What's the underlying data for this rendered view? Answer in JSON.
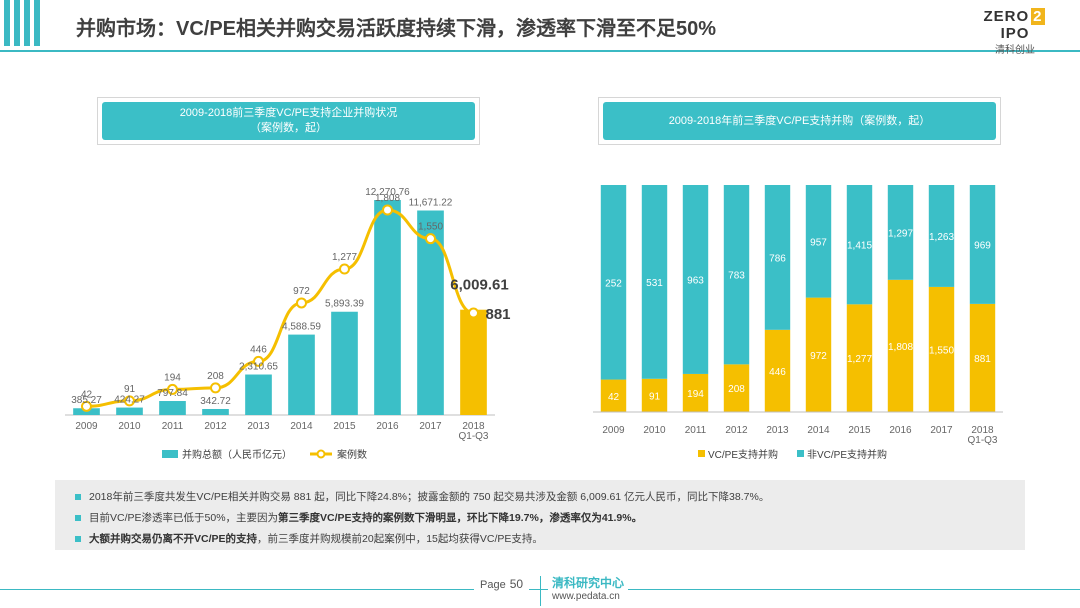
{
  "header": {
    "title": "并购市场：VC/PE相关并购交易活跃度持续下滑，渗透率下滑至不足50%"
  },
  "logo": {
    "name_left": "ZERO",
    "name_mid": "2",
    "name_right": "IPO",
    "sub": "清科创业"
  },
  "left_box": {
    "line1": "2009-2018前三季度VC/PE支持企业并购状况",
    "line2": "（案例数，起）"
  },
  "right_box": {
    "line1": "2009-2018年前三季度VC/PE支持并购（案例数，起）"
  },
  "chart_data": [
    {
      "type": "bar+line",
      "categories": [
        "2009",
        "2010",
        "2011",
        "2012",
        "2013",
        "2014",
        "2015",
        "2016",
        "2017",
        "2018 Q1-Q3"
      ],
      "series": [
        {
          "name": "并购总额（人民币亿元）",
          "type": "bar",
          "values": [
            385.27,
            424.27,
            797.84,
            342.72,
            2310.65,
            4588.59,
            5893.39,
            12270.76,
            11671.22,
            6009.61
          ],
          "labels": [
            "385.27",
            "424.27",
            "797.84",
            "342.72",
            "2,310.65",
            "4,588.59",
            "5,893.39",
            "12,270.76",
            "11,671.22",
            "6,009.61"
          ]
        },
        {
          "name": "案例数",
          "type": "line",
          "values": [
            42,
            91,
            194,
            208,
            446,
            972,
            1277,
            1808,
            1550,
            881
          ],
          "labels": [
            "42",
            "91",
            "194",
            "208",
            "446",
            "972",
            "1,277",
            "1,808",
            "1,550",
            "881"
          ]
        }
      ],
      "bar_color": "#3bbfc7",
      "last_bar_color": "#f5bf00",
      "line_color": "#f5bf00",
      "legend_position": "bottom"
    },
    {
      "type": "stacked-bar-100",
      "categories": [
        "2009",
        "2010",
        "2011",
        "2012",
        "2013",
        "2014",
        "2015",
        "2016",
        "2017",
        "2018 Q1-Q3"
      ],
      "series": [
        {
          "name": "VC/PE支持并购",
          "values": [
            42,
            91,
            194,
            208,
            446,
            972,
            1277,
            1808,
            1550,
            881
          ],
          "labels": [
            "42",
            "91",
            "194",
            "208",
            "446",
            "972",
            "1,277",
            "1,808",
            "1,550",
            "881"
          ],
          "color": "#f5bf00"
        },
        {
          "name": "非VC/PE支持并购",
          "values": [
            252,
            531,
            963,
            783,
            786,
            957,
            1415,
            1297,
            1263,
            969
          ],
          "labels": [
            "252",
            "531",
            "963",
            "783",
            "786",
            "957",
            "1,415",
            "1,297",
            "1,263",
            "969"
          ],
          "color": "#3bbfc7"
        }
      ],
      "legend_position": "bottom"
    }
  ],
  "notes": [
    {
      "pre": "2018年前三季度共发生VC/PE相关并购交易 881 起，同比下降24.8%；披露金额的 750 起交易共涉及金额 6,009.61 亿元人民币，同比下降38.7%。",
      "bold": "",
      "post": ""
    },
    {
      "pre": "目前VC/PE渗透率已低于50%，主要因为",
      "bold": "第三季度VC/PE支持的案例数下滑明显，环比下降19.7%，渗透率仅为41.9%。",
      "post": ""
    },
    {
      "pre": "",
      "bold": "大额并购交易仍离不开VC/PE的支持",
      "post": "，前三季度并购规模前20起案例中，15起均获得VC/PE支持。"
    }
  ],
  "footer": {
    "page_label": "Page",
    "page_number": "50",
    "org": "清科研究中心",
    "url": "www.pedata.cn"
  }
}
